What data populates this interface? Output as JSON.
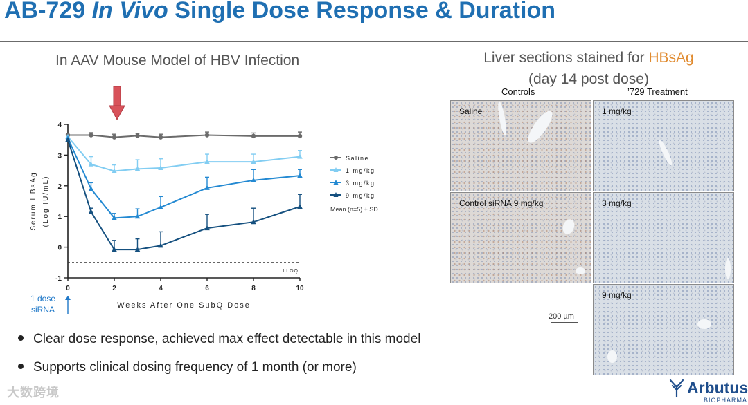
{
  "slide": {
    "title_pre": "AB-729 ",
    "title_italic": "In Vivo",
    "title_post": " Single Dose Response & Duration",
    "left_title": "In AAV Mouse Model of HBV Infection",
    "dose_note_line1": "1 dose",
    "dose_note_line2": "siRNA",
    "bullets": [
      "Clear dose response, achieved max effect detectable in this model",
      "Supports clinical dosing frequency of 1 month (or more)"
    ],
    "right_title_line1_pre": "Liver sections stained for ",
    "right_title_highlight": "HBsAg",
    "right_title_line2": "(day 14 post dose)",
    "col_controls": "Controls",
    "col_treatment": "’729 Treatment",
    "panels": [
      "Saline",
      "1 mg/kg",
      "Control siRNA 9 mg/kg",
      "3 mg/kg",
      "9 mg/kg"
    ],
    "scale_bar": "200 µm",
    "watermark": "大数跨境",
    "logo_name": "Arbutus",
    "logo_sub": "BIOPHARMA",
    "colors": {
      "title": "#1f6fb2",
      "highlight": "#e08a2e",
      "dose_note": "#1f78c8",
      "logo": "#1f4e8c",
      "arrow": "#d8525a"
    }
  },
  "chart_data": {
    "type": "line",
    "title": "",
    "xlabel": "Weeks After One SubQ Dose",
    "ylabel": "Serum HBsAg",
    "ylabel2": "(Log IU/mL)",
    "x_ticks": [
      0,
      2,
      4,
      6,
      8,
      10
    ],
    "y_ticks": [
      -1,
      0,
      1,
      2,
      3,
      4
    ],
    "xlim": [
      0,
      10
    ],
    "ylim": [
      -1,
      4
    ],
    "lloq": -0.5,
    "lloq_label": "LLOQ",
    "legend_note": "Mean (n=5) ± SD",
    "x": [
      0,
      1,
      2,
      3,
      4,
      6,
      8,
      10
    ],
    "series": [
      {
        "name": "Saline",
        "color": "#6b6b6b",
        "marker": "circle",
        "values": [
          3.65,
          3.65,
          3.58,
          3.63,
          3.58,
          3.65,
          3.62,
          3.62
        ],
        "err": [
          0.08,
          0.08,
          0.1,
          0.08,
          0.1,
          0.1,
          0.1,
          0.13
        ]
      },
      {
        "name": "1 mg/kg",
        "color": "#82cdf2",
        "marker": "triangle",
        "values": [
          3.6,
          2.7,
          2.48,
          2.55,
          2.58,
          2.78,
          2.78,
          2.95
        ],
        "err": [
          0.1,
          0.25,
          0.2,
          0.3,
          0.3,
          0.25,
          0.25,
          0.2
        ]
      },
      {
        "name": "3 mg/kg",
        "color": "#2389d2",
        "marker": "triangle",
        "values": [
          3.55,
          1.9,
          0.95,
          1.0,
          1.3,
          1.93,
          2.18,
          2.33
        ],
        "err": [
          0.1,
          0.2,
          0.15,
          0.25,
          0.35,
          0.35,
          0.35,
          0.2
        ]
      },
      {
        "name": "9 mg/kg",
        "color": "#15507f",
        "marker": "triangle",
        "values": [
          3.5,
          1.15,
          -0.08,
          -0.08,
          0.05,
          0.62,
          0.82,
          1.32
        ],
        "err": [
          0.1,
          0.12,
          0.3,
          0.35,
          0.45,
          0.45,
          0.45,
          0.4
        ]
      }
    ]
  }
}
